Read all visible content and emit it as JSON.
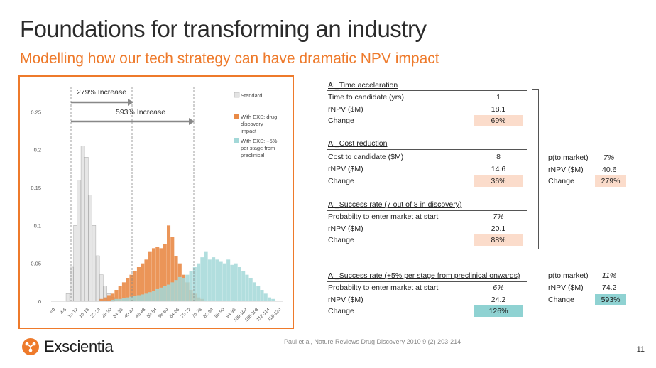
{
  "slide": {
    "title": "Foundations for transforming an industry",
    "subtitle": "Modelling how our tech strategy can have dramatic NPV impact",
    "citation": "Paul et al, Nature Reviews Drug Discovery 2010 9 (2) 203-214",
    "page_number": "11",
    "logo_text": "Exscientia",
    "accent_color": "#ee7a2b"
  },
  "chart_data": {
    "type": "bar",
    "y_ticks": [
      "0",
      "0.05",
      "0.1",
      "0.15",
      "0.2",
      "0.25"
    ],
    "ylim": [
      0,
      0.27
    ],
    "x_tick_labels": [
      "<0",
      "4-6",
      "10-12",
      "16-18",
      "22-24",
      "28-30",
      "34-36",
      "40-42",
      "46-48",
      "52-54",
      "58-60",
      "64-66",
      "70-72",
      "76-78",
      "82-84",
      "88-90",
      "94-96",
      "100-102",
      "106-108",
      "112-114",
      "118-120"
    ],
    "legend": [
      {
        "label": "Standard",
        "color": "#e3e3e3"
      },
      {
        "label": "With EXS: drug discovery impact",
        "color": "#e98a46"
      },
      {
        "label": "With EXS: +5% per stage from preclinical",
        "color": "#a3d8d8"
      }
    ],
    "annotations": {
      "increase_1": "279% Increase",
      "increase_2": "593% Increase"
    },
    "series": [
      {
        "name": "Standard",
        "color": "#e3e3e3",
        "values": [
          0,
          0,
          0,
          0,
          0.01,
          0.045,
          0.1,
          0.16,
          0.205,
          0.19,
          0.14,
          0.1,
          0.06,
          0.035,
          0.02,
          0.01,
          0.005,
          0,
          0,
          0,
          0,
          0,
          0,
          0,
          0,
          0,
          0,
          0,
          0,
          0,
          0,
          0,
          0,
          0,
          0,
          0,
          0,
          0,
          0,
          0,
          0,
          0,
          0,
          0,
          0,
          0,
          0,
          0,
          0,
          0,
          0,
          0,
          0,
          0,
          0,
          0,
          0,
          0,
          0,
          0,
          0,
          0
        ]
      },
      {
        "name": "With EXS: drug discovery impact",
        "color": "#e98a46",
        "values": [
          0,
          0,
          0,
          0,
          0,
          0,
          0,
          0,
          0,
          0,
          0,
          0,
          0,
          0.003,
          0.005,
          0.008,
          0.01,
          0.015,
          0.02,
          0.025,
          0.03,
          0.035,
          0.04,
          0.045,
          0.05,
          0.055,
          0.065,
          0.07,
          0.072,
          0.07,
          0.075,
          0.1,
          0.085,
          0.06,
          0.05,
          0.035,
          0.025,
          0.015,
          0.01,
          0.005,
          0.003,
          0,
          0,
          0,
          0,
          0,
          0,
          0,
          0,
          0,
          0,
          0,
          0,
          0,
          0,
          0,
          0,
          0,
          0,
          0
        ]
      },
      {
        "name": "With EXS: +5% per stage from preclinical",
        "color": "#a3d8d8",
        "values": [
          0,
          0,
          0,
          0,
          0,
          0,
          0,
          0,
          0,
          0,
          0,
          0,
          0,
          0,
          0,
          0,
          0.002,
          0.003,
          0.003,
          0.004,
          0.005,
          0.006,
          0.007,
          0.008,
          0.009,
          0.01,
          0.012,
          0.014,
          0.016,
          0.018,
          0.02,
          0.022,
          0.025,
          0.028,
          0.032,
          0.03,
          0.035,
          0.04,
          0.045,
          0.05,
          0.058,
          0.065,
          0.055,
          0.058,
          0.055,
          0.052,
          0.05,
          0.055,
          0.048,
          0.05,
          0.045,
          0.04,
          0.035,
          0.03,
          0.025,
          0.02,
          0.015,
          0.01,
          0.005,
          0.003
        ]
      }
    ]
  },
  "tables": {
    "time_acceleration": {
      "header": "AI_Time acceleration",
      "rows": [
        {
          "label": "Time to candidate (yrs)",
          "value": "1"
        },
        {
          "label": "rNPV ($M)",
          "value": "18.1"
        },
        {
          "label": "Change",
          "value": "69%"
        }
      ]
    },
    "cost_reduction": {
      "header": "AI_Cost reduction",
      "rows": [
        {
          "label": "Cost to candidate ($M)",
          "value": "8"
        },
        {
          "label": "rNPV ($M)",
          "value": "14.6"
        },
        {
          "label": "Change",
          "value": "36%"
        }
      ]
    },
    "success_rate_discovery": {
      "header": "AI_Success rate (7 out of 8 in discovery)",
      "rows": [
        {
          "label": "Probabilty to enter market at start",
          "value": "7%"
        },
        {
          "label": "rNPV ($M)",
          "value": "20.1"
        },
        {
          "label": "Change",
          "value": "88%"
        }
      ]
    },
    "success_rate_preclinical": {
      "header": "AI_Success rate (+5% per stage from preclinical onwards)",
      "rows": [
        {
          "label": "Probabilty to enter market at start",
          "value": "6%"
        },
        {
          "label": "rNPV ($M)",
          "value": "24.2"
        },
        {
          "label": "Change",
          "value": "126%"
        }
      ]
    },
    "combined_1": {
      "rows": [
        {
          "label": "p(to market)",
          "value": "7%"
        },
        {
          "label": "rNPV ($M)",
          "value": "40.6"
        },
        {
          "label": "Change",
          "value": "279%"
        }
      ]
    },
    "combined_2": {
      "rows": [
        {
          "label": "p(to market)",
          "value": "11%"
        },
        {
          "label": "rNPV ($M)",
          "value": "74.2"
        },
        {
          "label": "Change",
          "value": "593%"
        }
      ]
    }
  }
}
